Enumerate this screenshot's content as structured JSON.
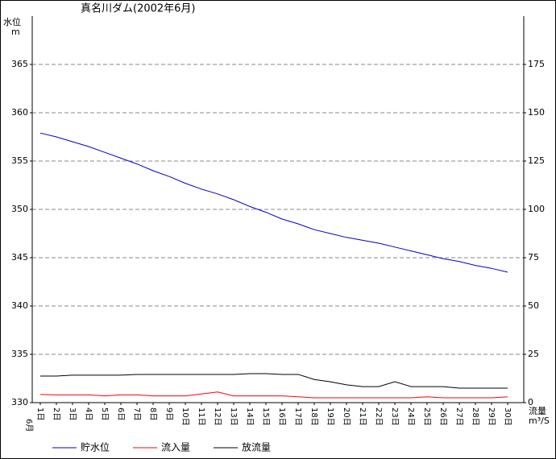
{
  "chart_data": {
    "type": "line",
    "title": "真名川ダム(2002年6月)",
    "y_label": "水位",
    "y_unit": "m",
    "y2_label": "流量",
    "y2_unit": "m³/S",
    "month_label": "6月",
    "categories": [
      "1日",
      "2日",
      "3日",
      "4日",
      "5日",
      "6日",
      "7日",
      "8日",
      "9日",
      "10日",
      "11日",
      "12日",
      "13日",
      "14日",
      "15日",
      "16日",
      "17日",
      "18日",
      "19日",
      "20日",
      "21日",
      "22日",
      "23日",
      "24日",
      "25日",
      "26日",
      "27日",
      "28日",
      "29日",
      "30日"
    ],
    "ylim": [
      330,
      370
    ],
    "yticks": [
      330,
      335,
      340,
      345,
      350,
      355,
      360,
      365
    ],
    "y2lim": [
      0,
      200
    ],
    "y2ticks": [
      0,
      25,
      50,
      75,
      100,
      125,
      150,
      175
    ],
    "grid": true,
    "series": [
      {
        "name": "貯水位",
        "color": "#0000cc",
        "values": [
          357.9,
          357.5,
          357.0,
          356.5,
          355.9,
          355.3,
          354.7,
          354.0,
          353.4,
          352.7,
          352.1,
          351.6,
          351.0,
          350.3,
          349.7,
          349.0,
          348.5,
          347.9,
          347.5,
          347.1,
          346.8,
          346.5,
          346.1,
          345.7,
          345.3,
          344.9,
          344.6,
          344.2,
          343.9,
          343.5
        ]
      },
      {
        "name": "流入量",
        "color": "#ff0000",
        "axis": "y2",
        "values": [
          4.2,
          4,
          4,
          4,
          3.5,
          4,
          4,
          3.5,
          3.5,
          3.5,
          4.5,
          5.5,
          3.5,
          3.5,
          3.5,
          3.5,
          3,
          2.5,
          2.5,
          2.5,
          2.5,
          2.5,
          2.5,
          2.5,
          3,
          2.5,
          2.5,
          2.5,
          2.5,
          3
        ]
      },
      {
        "name": "放流量",
        "color": "#000000",
        "axis": "y2",
        "values": [
          13.75,
          13.75,
          14.2,
          14.2,
          14.2,
          14.2,
          14.6,
          14.6,
          14.6,
          14.6,
          14.6,
          14.6,
          14.6,
          15,
          15,
          14.6,
          14.6,
          12,
          10.8,
          9.2,
          8.3,
          8.3,
          10.8,
          8.3,
          8.3,
          8.3,
          7.5,
          7.5,
          7.5,
          7.5
        ]
      }
    ]
  }
}
